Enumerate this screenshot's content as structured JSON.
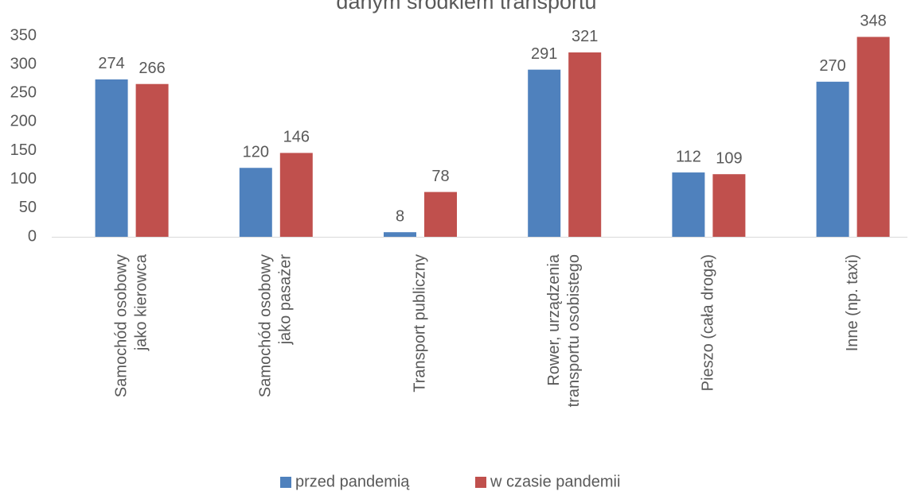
{
  "chart_data": {
    "type": "bar",
    "title": "danym środkiem transportu",
    "categories": [
      [
        "Samochód osobowy",
        "jako kierowca"
      ],
      [
        "Samochód osobowy",
        "jako pasażer"
      ],
      [
        "Transport publiczny"
      ],
      [
        "Rower, urządzenia",
        "transportu osobistego"
      ],
      [
        "Pieszo (cała droga)"
      ],
      [
        "Inne (np. taxi)"
      ]
    ],
    "series": [
      {
        "name": "przed pandemią",
        "color": "#4f81bd",
        "values": [
          274,
          120,
          8,
          291,
          112,
          270
        ]
      },
      {
        "name": "w czasie pandemii",
        "color": "#c0504d",
        "values": [
          266,
          146,
          78,
          321,
          109,
          348
        ]
      }
    ],
    "ylim": [
      0,
      350
    ],
    "yticks": [
      0,
      50,
      100,
      150,
      200,
      250,
      300,
      350
    ],
    "grid": false,
    "legend": "bottom"
  }
}
